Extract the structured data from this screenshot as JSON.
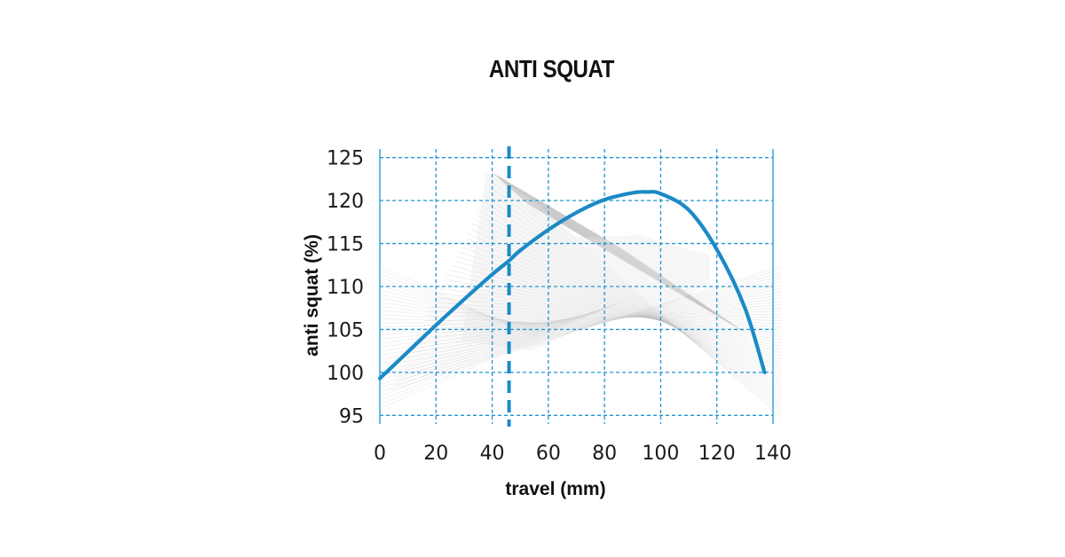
{
  "chart_data": {
    "type": "line",
    "title": "ANTI SQUAT",
    "xlabel": "travel (mm)",
    "ylabel": "anti squat (%)",
    "xlim": [
      0,
      140
    ],
    "ylim": [
      94,
      126
    ],
    "x_ticks": [
      "0",
      "20",
      "40",
      "60",
      "80",
      "100",
      "120",
      "140"
    ],
    "y_ticks": [
      "95",
      "100",
      "105",
      "110",
      "115",
      "120",
      "125"
    ],
    "grid": true,
    "grid_style": "dashed",
    "series": [
      {
        "x": [
          0,
          10,
          20,
          30,
          40,
          46,
          50,
          60,
          70,
          80,
          90,
          95,
          100,
          110,
          120,
          130,
          137
        ],
        "y": [
          99.3,
          102.4,
          105.5,
          108.5,
          111.4,
          113.0,
          114.2,
          116.6,
          118.6,
          120.1,
          120.9,
          121.0,
          120.8,
          118.9,
          114.3,
          107.5,
          100.0
        ]
      }
    ],
    "reference_line_x": 46,
    "colors": {
      "line": "#1b8ac6",
      "grid": "#2196d3",
      "background_drawing": "#b5b5b5"
    }
  }
}
